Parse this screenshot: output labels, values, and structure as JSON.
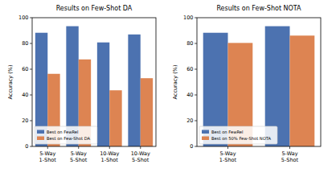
{
  "chart_data": [
    {
      "type": "bar",
      "title": "Results on Few-Shot DA",
      "y_label": "Accuracy (%)",
      "categories": [
        "5-Way\n1-Shot",
        "5-Way\n5-Shot",
        "10-Way\n1-Shot",
        "10-Way\n5-Shot"
      ],
      "series": [
        {
          "name": "Best on FewRel",
          "color": "#4c72b0",
          "values": [
            88.3,
            93.4,
            80.8,
            87.0
          ]
        },
        {
          "name": "Best on Few-Shot DA",
          "color": "#dd8452",
          "values": [
            56.4,
            67.6,
            43.6,
            53.0
          ]
        }
      ],
      "ylim": [
        0,
        100
      ],
      "yticks": [
        0,
        20,
        40,
        60,
        80,
        100
      ],
      "legend": "lower left"
    },
    {
      "type": "bar",
      "title": "Results on Few-Shot NOTA",
      "y_label": "Accuracy (%)",
      "categories": [
        "5-Way\n1-Shot",
        "5-Way\n5-Shot"
      ],
      "series": [
        {
          "name": "Best on FewRel",
          "color": "#4c72b0",
          "values": [
            88.3,
            93.4
          ]
        },
        {
          "name": "Best on 50% Few-Shot NOTA",
          "color": "#dd8452",
          "values": [
            80.4,
            86.1
          ]
        }
      ],
      "ylim": [
        0,
        100
      ],
      "yticks": [
        0,
        20,
        40,
        60,
        80,
        100
      ],
      "legend": "lower left"
    }
  ]
}
